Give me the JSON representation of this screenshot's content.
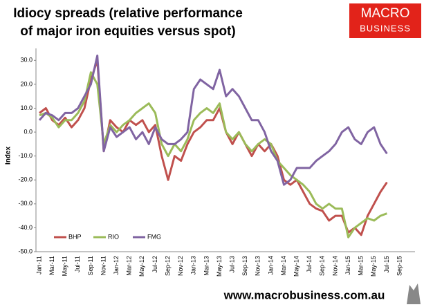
{
  "chart_data": {
    "type": "line",
    "title": [
      "Idiocy spreads (relative performance",
      "of major iron equities versus spot)"
    ],
    "y_label": "Index",
    "categories": [
      "Jan-11",
      null,
      "Mar-11",
      null,
      "May-11",
      null,
      "Jul-11",
      null,
      "Sep-11",
      null,
      "Nov-11",
      null,
      "Jan-12",
      null,
      "Mar-12",
      null,
      "May-12",
      null,
      "Jul-12",
      null,
      "Sep-12",
      null,
      "Nov-12",
      null,
      "Jan-13",
      null,
      "Mar-13",
      null,
      "May-13",
      null,
      "Jul-13",
      null,
      "Sep-13",
      null,
      "Nov-13",
      null,
      "Jan-14",
      null,
      "Mar-14",
      null,
      "May-14",
      null,
      "Jul-14",
      null,
      "Sep-14",
      null,
      "Nov-14",
      null,
      "Jan-15",
      null,
      "Mar-15",
      null,
      "May-15",
      null,
      "Jul-15",
      null,
      "Sep-15"
    ],
    "series": [
      {
        "name": "BHP",
        "color": "#c0504d",
        "values": [
          8,
          10,
          5,
          3,
          6,
          2,
          5,
          10,
          22,
          30,
          -8,
          5,
          2,
          0,
          5,
          3,
          5,
          0,
          3,
          -10,
          -20,
          -10,
          -12,
          -5,
          0,
          2,
          5,
          5,
          10,
          0,
          -5,
          0,
          -5,
          -10,
          -5,
          -8,
          -5,
          -10,
          -20,
          -22,
          -20,
          -25,
          -30,
          -32,
          -33,
          -37,
          -35,
          -35,
          -42,
          -40,
          -43,
          -35,
          -30,
          -25,
          -21,
          null,
          null
        ]
      },
      {
        "name": "RIO",
        "color": "#9bbb59",
        "values": [
          7,
          8,
          6,
          2,
          5,
          5,
          8,
          13,
          25,
          20,
          -5,
          3,
          0,
          3,
          5,
          8,
          10,
          12,
          8,
          -5,
          -10,
          -5,
          -8,
          -3,
          5,
          8,
          10,
          8,
          12,
          0,
          -3,
          0,
          -5,
          -8,
          -5,
          -3,
          -5,
          -12,
          -15,
          -18,
          -20,
          -22,
          -25,
          -30,
          -32,
          -30,
          -32,
          -32,
          -44,
          -40,
          -38,
          -36,
          -37,
          -35,
          -34,
          null,
          null
        ]
      },
      {
        "name": "FMG",
        "color": "#8064a2",
        "values": [
          5,
          8,
          7,
          5,
          8,
          8,
          10,
          15,
          20,
          32,
          -8,
          2,
          -2,
          0,
          2,
          -3,
          0,
          -5,
          2,
          -3,
          -5,
          -5,
          -3,
          0,
          18,
          22,
          20,
          18,
          26,
          15,
          18,
          15,
          10,
          5,
          5,
          0,
          -8,
          -12,
          -22,
          -20,
          -15,
          -15,
          -15,
          -12,
          -10,
          -8,
          -5,
          0,
          2,
          -3,
          -5,
          0,
          2,
          -5,
          -9,
          null,
          null
        ]
      }
    ],
    "ylim": [
      -50,
      35
    ],
    "yticks": [
      {
        "value": -50,
        "label": "-50.0"
      },
      {
        "value": -40,
        "label": "-40.0"
      },
      {
        "value": -30,
        "label": "-30.0"
      },
      {
        "value": -20,
        "label": "-20.0"
      },
      {
        "value": -10,
        "label": "-10.0"
      },
      {
        "value": 0,
        "label": "0.0"
      },
      {
        "value": 10,
        "label": "10.0"
      },
      {
        "value": 20,
        "label": "20.0"
      },
      {
        "value": 30,
        "label": "30.0"
      }
    ],
    "grid": false,
    "legend": "bottom-left"
  },
  "logo": {
    "line1": "MACRO",
    "line2": "BUSINESS"
  },
  "footer": "www.macrobusiness.com.au"
}
